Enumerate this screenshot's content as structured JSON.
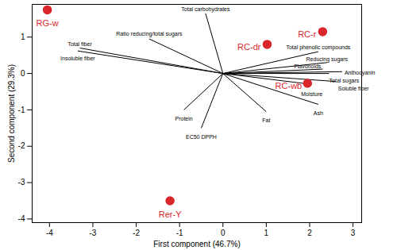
{
  "chart_data": {
    "type": "scatter",
    "x_label": "First component (46.7%)",
    "y_label": "Second component (29.3%)",
    "xlim": [
      -4.4,
      3.2
    ],
    "xticks": [
      -4,
      -3,
      -2,
      -1,
      0,
      1,
      2,
      3
    ],
    "ylim": [
      -4.1,
      1.9
    ],
    "yticks": [
      -4,
      -3,
      -2,
      -1,
      0,
      1
    ],
    "grid": false,
    "points": {
      "labels": [
        "RG-w",
        "RC-dr",
        "RC-r",
        "RC-wb",
        "Rer-Y"
      ],
      "x": [
        -4.05,
        1.02,
        2.3,
        1.95,
        -1.22
      ],
      "y": [
        1.75,
        0.8,
        1.15,
        -0.27,
        -3.5
      ],
      "color": "#d9262b",
      "marker": "circle"
    },
    "vectors": {
      "labels": [
        "Total carbohydrates",
        "Ratio reducing/total sugars",
        "Total fiber",
        "Insoluble fiber",
        "Total phenolic compounds",
        "Reducing sugars",
        "Flavonoids",
        "Total sugars",
        "Anthocyanin",
        "Soluble fiber",
        "Moisture",
        "Ash",
        "Fat",
        "EC50 DPPH",
        "Protein"
      ],
      "x": [
        -0.4,
        -1.7,
        -3.3,
        -3.35,
        2.2,
        2.4,
        2.3,
        2.45,
        2.75,
        2.6,
        2.05,
        2.2,
        1.0,
        -0.5,
        -0.9
      ],
      "y": [
        1.65,
        0.95,
        0.7,
        0.62,
        0.6,
        0.3,
        0.12,
        0.0,
        0.05,
        -0.22,
        -0.3,
        -0.85,
        -1.05,
        -1.5,
        -1.0
      ],
      "color": "#000000"
    }
  }
}
